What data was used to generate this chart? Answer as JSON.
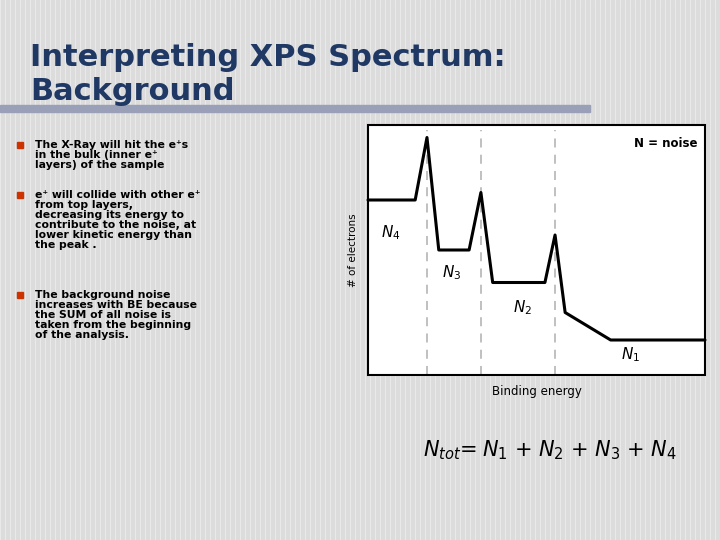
{
  "title_line1": "Interpreting XPS Spectrum:",
  "title_line2": "Background",
  "title_color": "#1F3864",
  "slide_bg": "#DCDCDC",
  "accent_bar_color": "#9AA0B8",
  "bullet_color": "#CC3300",
  "dashed_color": "#BBBBBB",
  "bullet1_lines": [
    "The X-Ray will hit the e⁺s",
    "in the bulk (inner e⁺",
    "layers) of the sample"
  ],
  "bullet2_lines": [
    "e⁺ will collide with other e⁺",
    "from top layers,",
    "decreasing its energy to",
    "contribute to the noise, at",
    "lower kinetic energy than",
    "the peak ."
  ],
  "bullet3_lines": [
    "The background noise",
    "increases with BE because",
    "the SUM of all noise is",
    "taken from the beginning",
    "of the analysis."
  ],
  "xlabel": "Binding energy",
  "ylabel": "# of electrons",
  "noise_label": "N = noise"
}
